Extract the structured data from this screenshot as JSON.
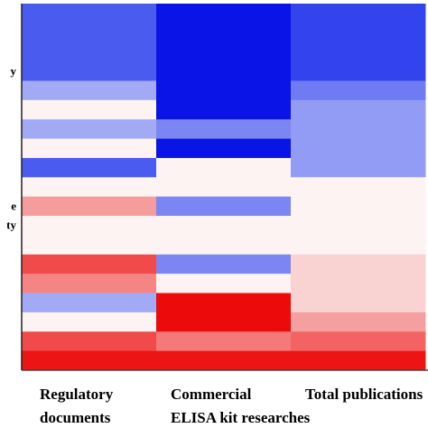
{
  "chart_data": {
    "type": "heatmap",
    "row_labels": [
      null,
      null,
      null,
      "y",
      null,
      null,
      null,
      null,
      null,
      null,
      "e",
      "ty",
      null,
      null,
      null,
      null,
      null,
      null,
      null
    ],
    "columns": [
      {
        "label_lines": [
          "Regulatory",
          "documents"
        ],
        "colors": [
          "#4a5bf0",
          "#4a5bf0",
          "#4a5bf0",
          "#4a5bf0",
          "#a3aaf5",
          "#fdf3f3",
          "#a3aaf5",
          "#fdf3f3",
          "#4a5bf0",
          "#fdf3f3",
          "#f59c9c",
          "#fdf3f3",
          "#fdf3f3",
          "#f04a4a",
          "#f58585",
          "#a3aaf5",
          "#fdf3f3",
          "#f04a4a",
          "#ec1414"
        ]
      },
      {
        "label_lines": [
          "Commercial",
          "ELISA kit researches"
        ],
        "colors": [
          "#0a14e6",
          "#0a14e6",
          "#0a14e6",
          "#0a14e6",
          "#0a14e6",
          "#0a14e6",
          "#7c86f2",
          "#0a14e6",
          "#fdf3f3",
          "#fdf3f3",
          "#7c86f2",
          "#fdf3f3",
          "#fdf3f3",
          "#7c86f2",
          "#fdf3f3",
          "#ec0a0a",
          "#ec0a0a",
          "#f47a7a",
          "#ec1414"
        ]
      },
      {
        "label_lines": [
          "Total publications"
        ],
        "colors": [
          "#3344ee",
          "#3344ee",
          "#3344ee",
          "#3344ee",
          "#6f7bf2",
          "#939cf4",
          "#939cf4",
          "#939cf4",
          "#939cf4",
          "#fdf3f3",
          "#fdf3f3",
          "#fdf3f3",
          "#fdf3f3",
          "#f9d2d2",
          "#f9d2d2",
          "#f9d2d2",
          "#f5a0a0",
          "#f26464",
          "#ec1414"
        ]
      }
    ]
  }
}
